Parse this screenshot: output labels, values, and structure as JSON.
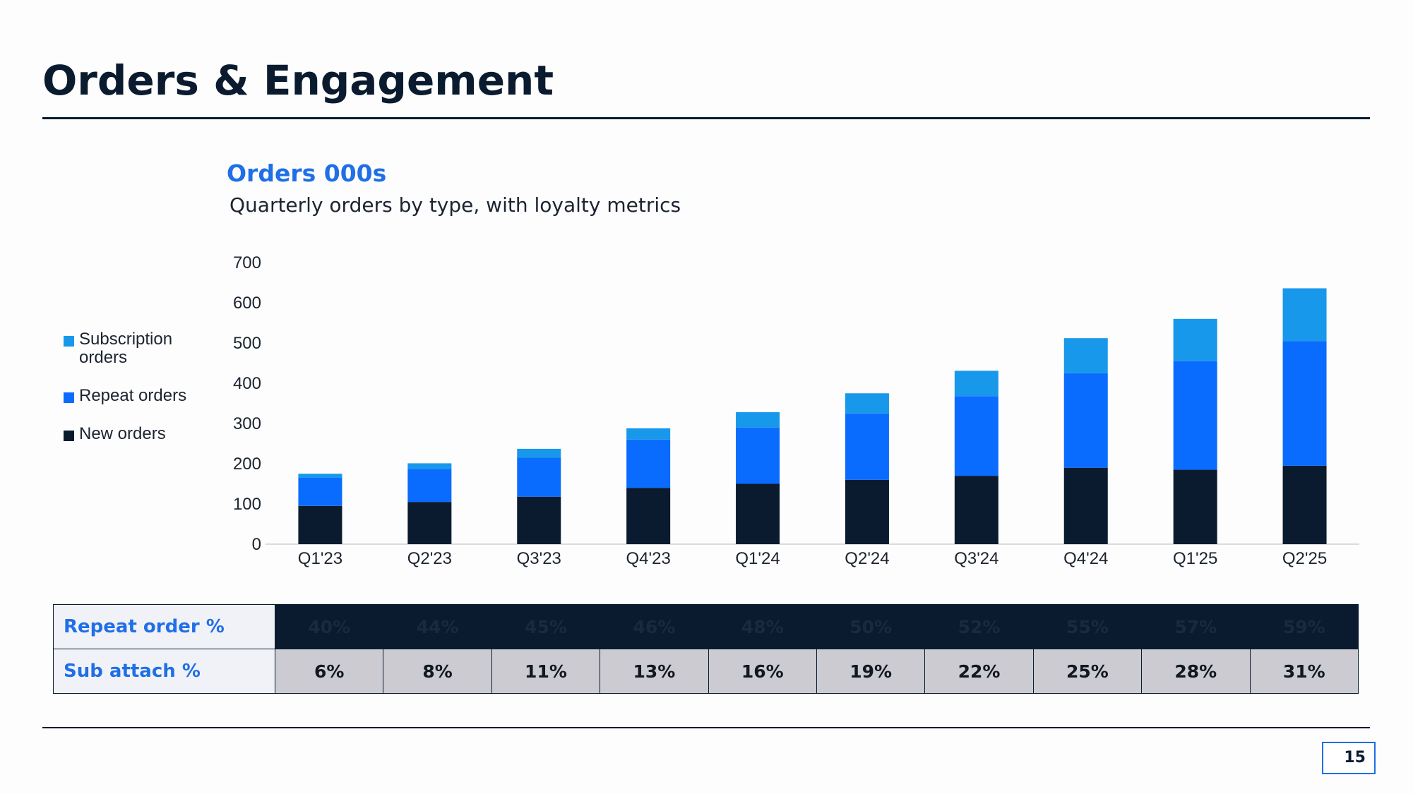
{
  "page": {
    "title": "Orders & Engagement",
    "page_number": "15"
  },
  "chart_data": {
    "type": "bar",
    "stacked": true,
    "title": "Orders 000s",
    "subtitle": "Quarterly orders by type, with loyalty metrics",
    "categories": [
      "Q1'23",
      "Q2'23",
      "Q3'23",
      "Q4'23",
      "Q1'24",
      "Q2'24",
      "Q3'24",
      "Q4'24",
      "Q1'25",
      "Q2'25"
    ],
    "series": [
      {
        "name": "New orders",
        "color": "#0b1b2f",
        "values": [
          95,
          105,
          118,
          140,
          150,
          160,
          170,
          190,
          185,
          195
        ]
      },
      {
        "name": "Repeat orders",
        "color": "#0a6cff",
        "values": [
          70,
          82,
          97,
          120,
          140,
          165,
          198,
          235,
          270,
          310
        ]
      },
      {
        "name": "Subscription orders",
        "color": "#1898ea",
        "values": [
          10,
          14,
          22,
          28,
          38,
          50,
          63,
          87,
          105,
          131
        ]
      }
    ],
    "y_ticks": [
      0,
      100,
      200,
      300,
      400,
      500,
      600,
      700
    ],
    "ylim": [
      0,
      700
    ],
    "legend_position": "left",
    "grid": false
  },
  "legend": [
    {
      "label": "Subscription orders",
      "color": "#1898ea"
    },
    {
      "label": "Repeat orders",
      "color": "#0a6cff"
    },
    {
      "label": "New orders",
      "color": "#0b1b2f"
    }
  ],
  "metrics_table": {
    "rows": [
      {
        "label": "Repeat order %",
        "values": [
          "40%",
          "44%",
          "45%",
          "46%",
          "48%",
          "50%",
          "52%",
          "55%",
          "57%",
          "59%"
        ]
      },
      {
        "label": "Sub attach %",
        "values": [
          "6%",
          "8%",
          "11%",
          "13%",
          "16%",
          "19%",
          "22%",
          "25%",
          "28%",
          "31%"
        ]
      }
    ]
  }
}
